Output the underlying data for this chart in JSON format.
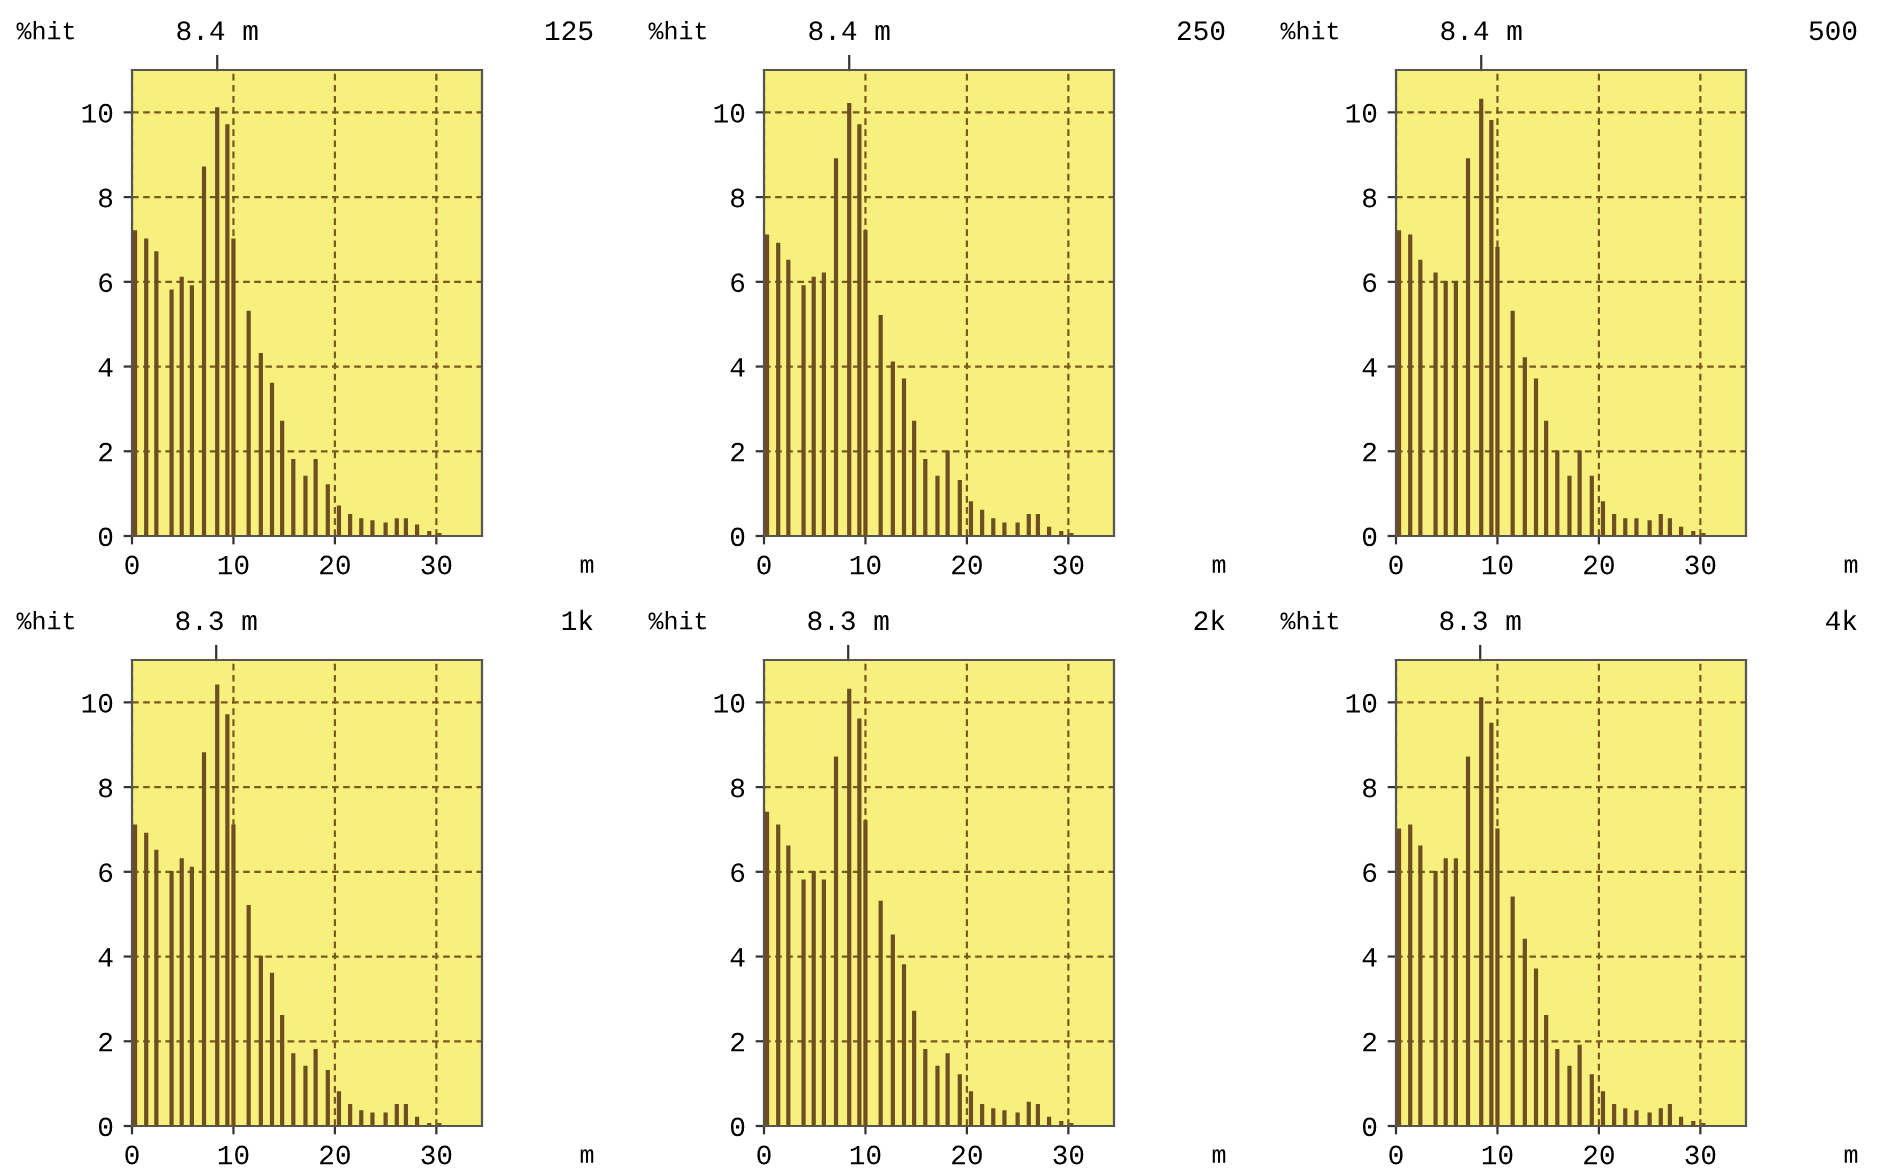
{
  "chart_data": [
    {
      "type": "bar",
      "annotations": [
        "125"
      ],
      "ylabel": "%hit",
      "xlabel": "m",
      "ref_lines": [
        {
          "axis": "x",
          "value": 8.4,
          "label": "8.4 m"
        }
      ],
      "x": [
        0.3,
        1.4,
        2.4,
        3.9,
        4.9,
        5.9,
        7.1,
        8.4,
        9.4,
        10.0,
        11.5,
        12.7,
        13.8,
        14.8,
        15.9,
        17.1,
        18.1,
        19.3,
        20.4,
        21.5,
        22.6,
        23.7,
        25.0,
        26.1,
        27.0,
        28.1,
        29.3,
        30.3
      ],
      "series": [
        {
          "color": "#6e4f22",
          "values": [
            7.2,
            7.0,
            6.7,
            5.8,
            6.1,
            5.9,
            8.7,
            10.1,
            9.7,
            7.0,
            5.3,
            4.3,
            3.6,
            2.7,
            1.8,
            1.4,
            1.8,
            1.2,
            0.7,
            0.5,
            0.4,
            0.35,
            0.3,
            0.4,
            0.4,
            0.25,
            0.1,
            0.05
          ]
        }
      ],
      "xlim": [
        0,
        34.5
      ],
      "xticks": [
        0,
        10,
        20,
        30
      ],
      "ylim": [
        0,
        11
      ],
      "yticks": [
        0,
        2,
        4,
        6,
        8,
        10
      ],
      "grid": true
    },
    {
      "type": "bar",
      "annotations": [
        "250"
      ],
      "ylabel": "%hit",
      "xlabel": "m",
      "ref_lines": [
        {
          "axis": "x",
          "value": 8.4,
          "label": "8.4 m"
        }
      ],
      "x": [
        0.3,
        1.4,
        2.4,
        3.9,
        4.9,
        5.9,
        7.1,
        8.4,
        9.4,
        10.0,
        11.5,
        12.7,
        13.8,
        14.8,
        15.9,
        17.1,
        18.1,
        19.3,
        20.4,
        21.5,
        22.6,
        23.7,
        25.0,
        26.1,
        27.0,
        28.1,
        29.3,
        30.3
      ],
      "series": [
        {
          "color": "#6e4f22",
          "values": [
            7.1,
            6.9,
            6.5,
            5.9,
            6.1,
            6.2,
            8.9,
            10.2,
            9.7,
            7.2,
            5.2,
            4.1,
            3.7,
            2.7,
            1.8,
            1.4,
            2.0,
            1.3,
            0.8,
            0.6,
            0.4,
            0.3,
            0.3,
            0.5,
            0.5,
            0.2,
            0.1,
            0.05
          ]
        }
      ],
      "xlim": [
        0,
        34.5
      ],
      "xticks": [
        0,
        10,
        20,
        30
      ],
      "ylim": [
        0,
        11
      ],
      "yticks": [
        0,
        2,
        4,
        6,
        8,
        10
      ],
      "grid": true
    },
    {
      "type": "bar",
      "annotations": [
        "500"
      ],
      "ylabel": "%hit",
      "xlabel": "m",
      "ref_lines": [
        {
          "axis": "x",
          "value": 8.4,
          "label": "8.4 m"
        }
      ],
      "x": [
        0.3,
        1.4,
        2.4,
        3.9,
        4.9,
        5.9,
        7.1,
        8.4,
        9.4,
        10.0,
        11.5,
        12.7,
        13.8,
        14.8,
        15.9,
        17.1,
        18.1,
        19.3,
        20.4,
        21.5,
        22.6,
        23.7,
        25.0,
        26.1,
        27.0,
        28.1,
        29.3,
        30.3
      ],
      "series": [
        {
          "color": "#6e4f22",
          "values": [
            7.2,
            7.1,
            6.5,
            6.2,
            6.0,
            6.0,
            8.9,
            10.3,
            9.8,
            6.8,
            5.3,
            4.2,
            3.7,
            2.7,
            2.0,
            1.4,
            2.0,
            1.4,
            0.8,
            0.5,
            0.4,
            0.4,
            0.35,
            0.5,
            0.4,
            0.2,
            0.1,
            0.05
          ]
        }
      ],
      "xlim": [
        0,
        34.5
      ],
      "xticks": [
        0,
        10,
        20,
        30
      ],
      "ylim": [
        0,
        11
      ],
      "yticks": [
        0,
        2,
        4,
        6,
        8,
        10
      ],
      "grid": true
    },
    {
      "type": "bar",
      "annotations": [
        "1k"
      ],
      "ylabel": "%hit",
      "xlabel": "m",
      "ref_lines": [
        {
          "axis": "x",
          "value": 8.3,
          "label": "8.3 m"
        }
      ],
      "x": [
        0.3,
        1.4,
        2.4,
        3.9,
        4.9,
        5.9,
        7.1,
        8.4,
        9.4,
        10.0,
        11.5,
        12.7,
        13.8,
        14.8,
        15.9,
        17.1,
        18.1,
        19.3,
        20.4,
        21.5,
        22.6,
        23.7,
        25.0,
        26.1,
        27.0,
        28.1,
        29.3,
        30.3
      ],
      "series": [
        {
          "color": "#6e4f22",
          "values": [
            7.1,
            6.9,
            6.5,
            6.0,
            6.3,
            6.1,
            8.8,
            10.4,
            9.7,
            7.1,
            5.2,
            4.0,
            3.6,
            2.6,
            1.7,
            1.4,
            1.8,
            1.3,
            0.8,
            0.5,
            0.35,
            0.3,
            0.3,
            0.5,
            0.5,
            0.2,
            0.05,
            0.05
          ]
        }
      ],
      "xlim": [
        0,
        34.5
      ],
      "xticks": [
        0,
        10,
        20,
        30
      ],
      "ylim": [
        0,
        11
      ],
      "yticks": [
        0,
        2,
        4,
        6,
        8,
        10
      ],
      "grid": true
    },
    {
      "type": "bar",
      "annotations": [
        "2k"
      ],
      "ylabel": "%hit",
      "xlabel": "m",
      "ref_lines": [
        {
          "axis": "x",
          "value": 8.3,
          "label": "8.3 m"
        }
      ],
      "x": [
        0.3,
        1.4,
        2.4,
        3.9,
        4.9,
        5.9,
        7.1,
        8.4,
        9.4,
        10.0,
        11.5,
        12.7,
        13.8,
        14.8,
        15.9,
        17.1,
        18.1,
        19.3,
        20.4,
        21.5,
        22.6,
        23.7,
        25.0,
        26.1,
        27.0,
        28.1,
        29.3,
        30.3
      ],
      "series": [
        {
          "color": "#6e4f22",
          "values": [
            7.4,
            7.1,
            6.6,
            5.8,
            6.0,
            5.8,
            8.7,
            10.3,
            9.6,
            7.2,
            5.3,
            4.5,
            3.8,
            2.7,
            1.8,
            1.4,
            1.7,
            1.2,
            0.8,
            0.5,
            0.4,
            0.35,
            0.3,
            0.55,
            0.5,
            0.2,
            0.1,
            0.05
          ]
        }
      ],
      "xlim": [
        0,
        34.5
      ],
      "xticks": [
        0,
        10,
        20,
        30
      ],
      "ylim": [
        0,
        11
      ],
      "yticks": [
        0,
        2,
        4,
        6,
        8,
        10
      ],
      "grid": true
    },
    {
      "type": "bar",
      "annotations": [
        "4k"
      ],
      "ylabel": "%hit",
      "xlabel": "m",
      "ref_lines": [
        {
          "axis": "x",
          "value": 8.3,
          "label": "8.3 m"
        }
      ],
      "x": [
        0.3,
        1.4,
        2.4,
        3.9,
        4.9,
        5.9,
        7.1,
        8.4,
        9.4,
        10.0,
        11.5,
        12.7,
        13.8,
        14.8,
        15.9,
        17.1,
        18.1,
        19.3,
        20.4,
        21.5,
        22.6,
        23.7,
        25.0,
        26.1,
        27.0,
        28.1,
        29.3,
        30.3
      ],
      "series": [
        {
          "color": "#6e4f22",
          "values": [
            7.0,
            7.1,
            6.6,
            6.0,
            6.3,
            6.3,
            8.7,
            10.1,
            9.5,
            7.0,
            5.4,
            4.4,
            3.7,
            2.6,
            1.8,
            1.4,
            1.9,
            1.2,
            0.8,
            0.5,
            0.4,
            0.35,
            0.3,
            0.4,
            0.5,
            0.2,
            0.1,
            0.05
          ]
        }
      ],
      "xlim": [
        0,
        34.5
      ],
      "xticks": [
        0,
        10,
        20,
        30
      ],
      "ylim": [
        0,
        11
      ],
      "yticks": [
        0,
        2,
        4,
        6,
        8,
        10
      ],
      "grid": true
    }
  ]
}
